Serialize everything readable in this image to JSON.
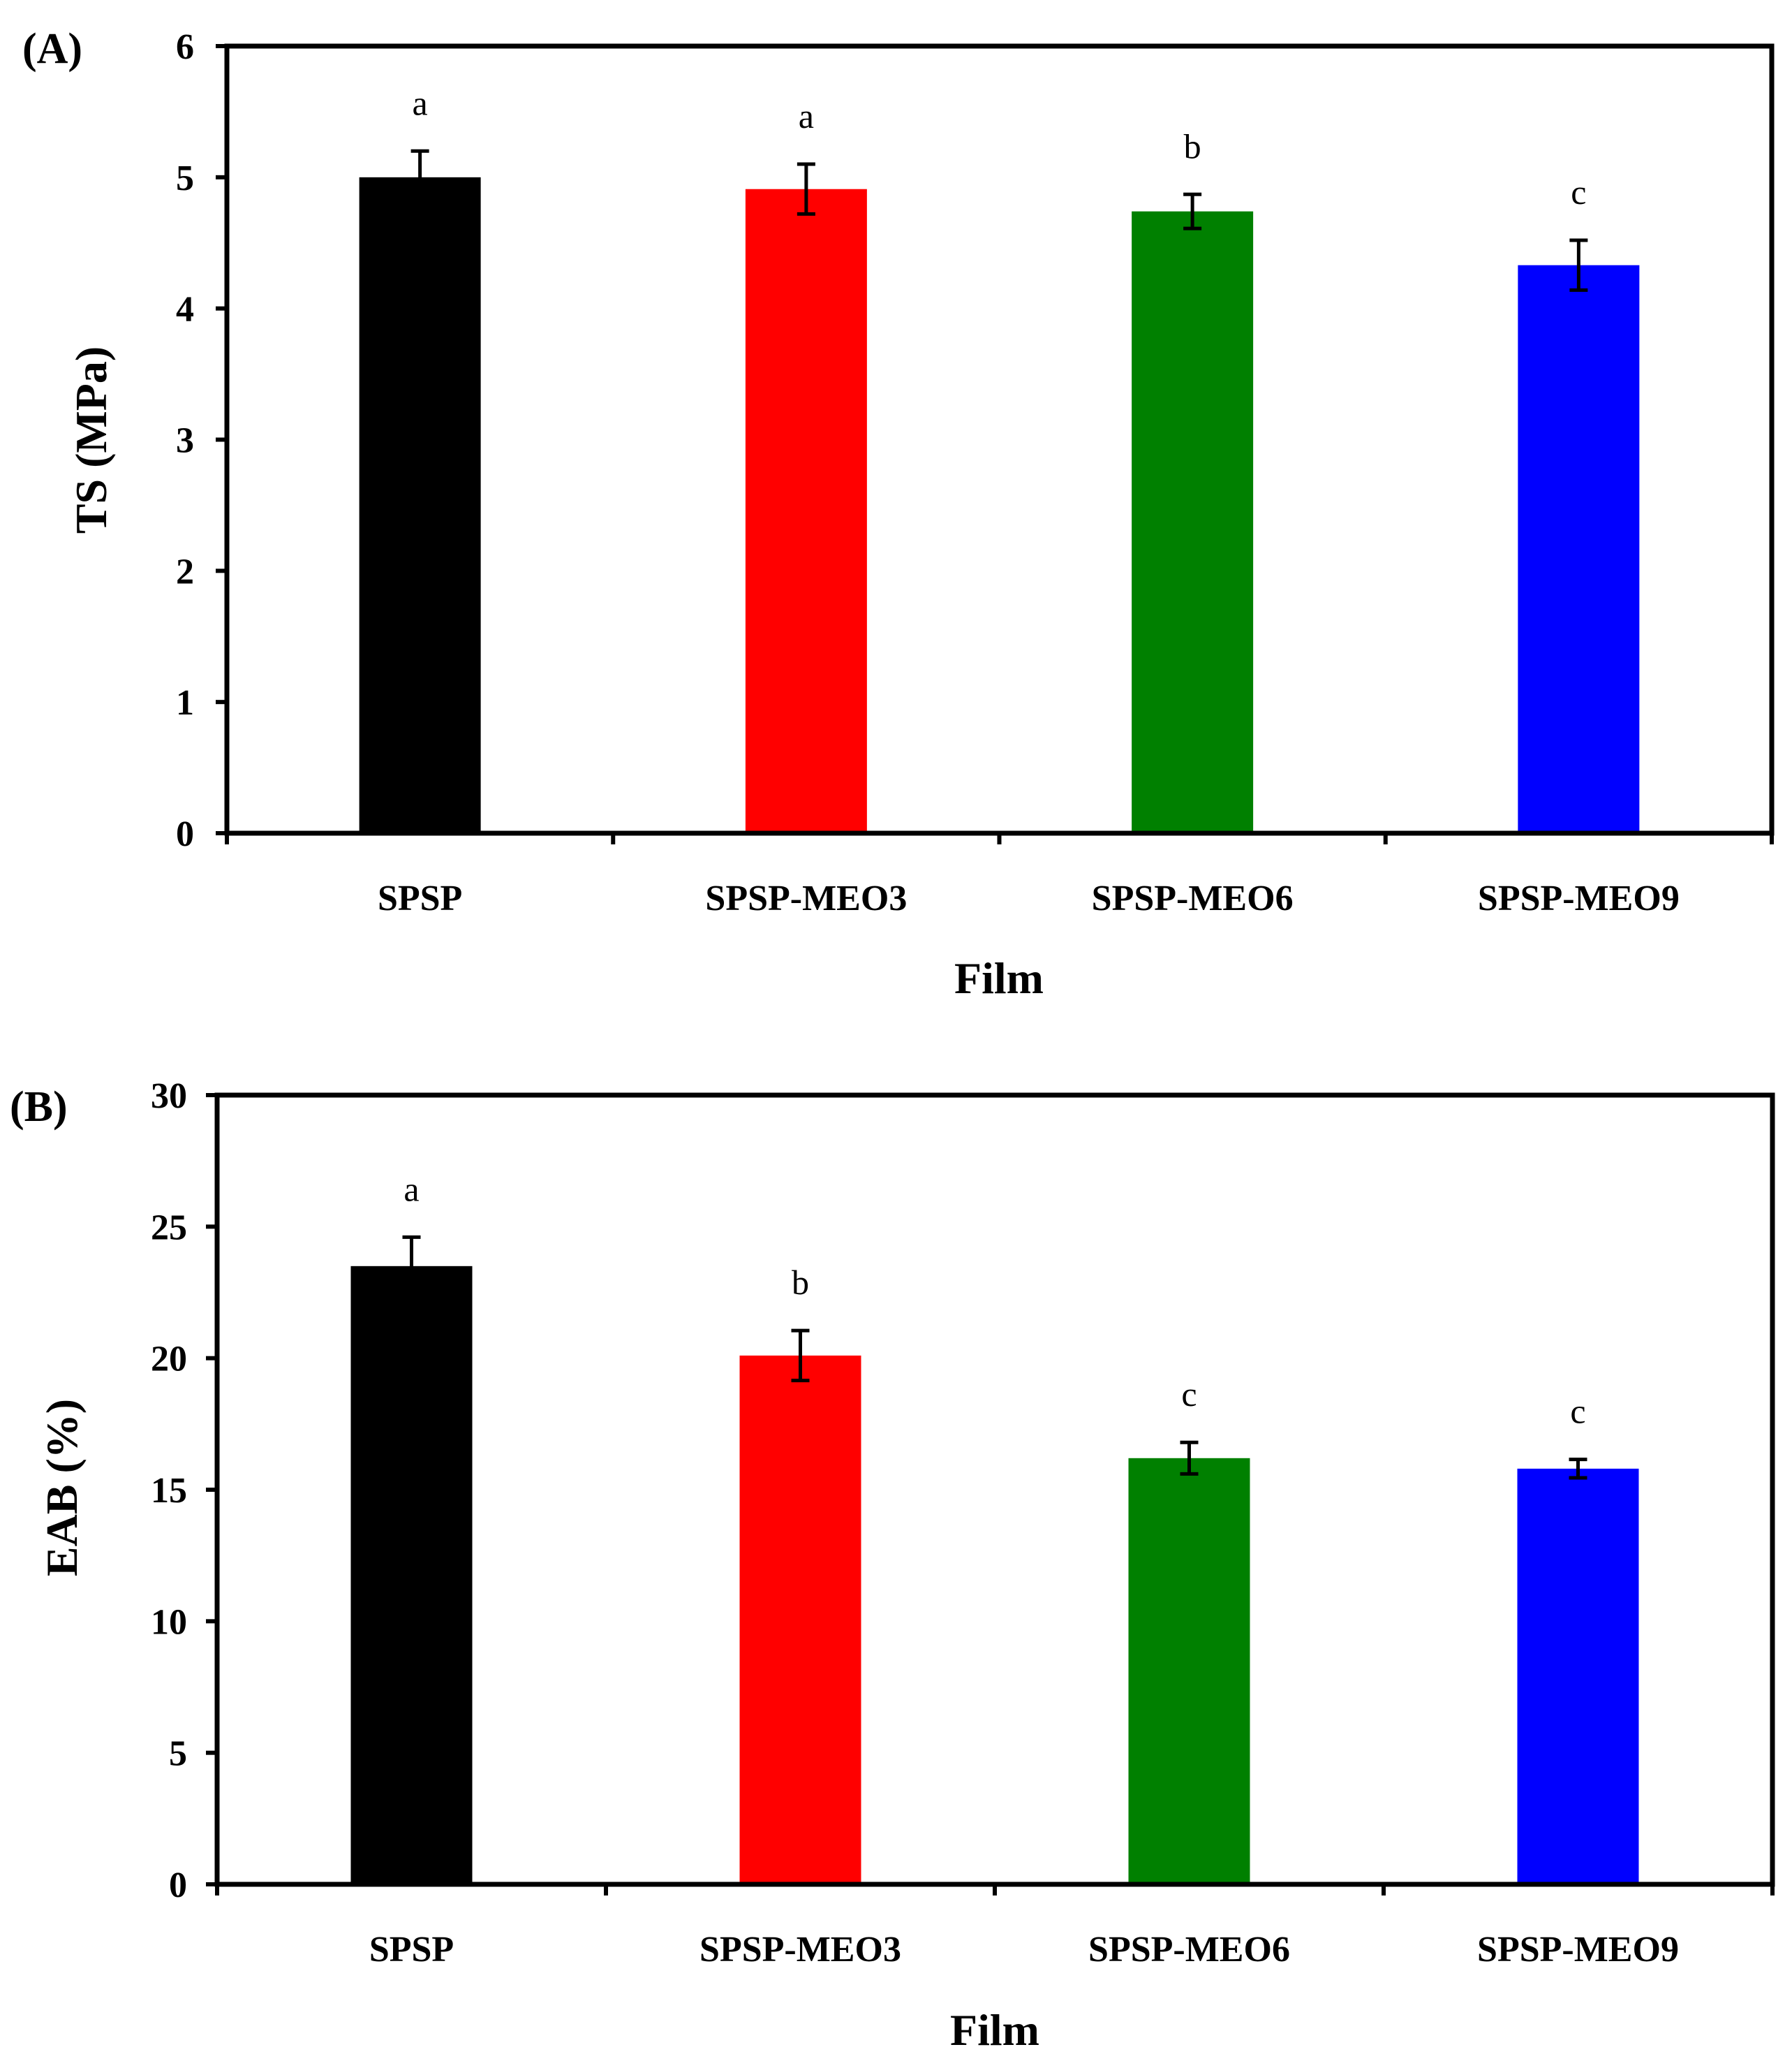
{
  "chart_data": [
    {
      "type": "bar",
      "panel": "(A)",
      "title": "",
      "xlabel": "Film",
      "ylabel": "TS (MPa)",
      "ylim": [
        0,
        6
      ],
      "yticks": [
        0,
        1,
        2,
        3,
        4,
        5,
        6
      ],
      "grid": false,
      "categories": [
        "SPSP",
        "SPSP-MEO3",
        "SPSP-MEO6",
        "SPSP-MEO9"
      ],
      "values": [
        5.0,
        4.91,
        4.74,
        4.33
      ],
      "errors": [
        0.2,
        0.19,
        0.13,
        0.19
      ],
      "letters": [
        "a",
        "a",
        "b",
        "c"
      ],
      "colors": [
        "#000000",
        "#ff0000",
        "#008000",
        "#0000ff"
      ]
    },
    {
      "type": "bar",
      "panel": "(B)",
      "title": "",
      "xlabel": "Film",
      "ylabel": "EAB (%)",
      "ylim": [
        0,
        30
      ],
      "yticks": [
        0,
        5,
        10,
        15,
        20,
        25,
        30
      ],
      "grid": false,
      "categories": [
        "SPSP",
        "SPSP-MEO3",
        "SPSP-MEO6",
        "SPSP-MEO9"
      ],
      "values": [
        23.5,
        20.1,
        16.2,
        15.8
      ],
      "errors": [
        1.1,
        0.95,
        0.6,
        0.35
      ],
      "letters": [
        "a",
        "b",
        "c",
        "c"
      ],
      "colors": [
        "#000000",
        "#ff0000",
        "#008000",
        "#0000ff"
      ]
    }
  ]
}
